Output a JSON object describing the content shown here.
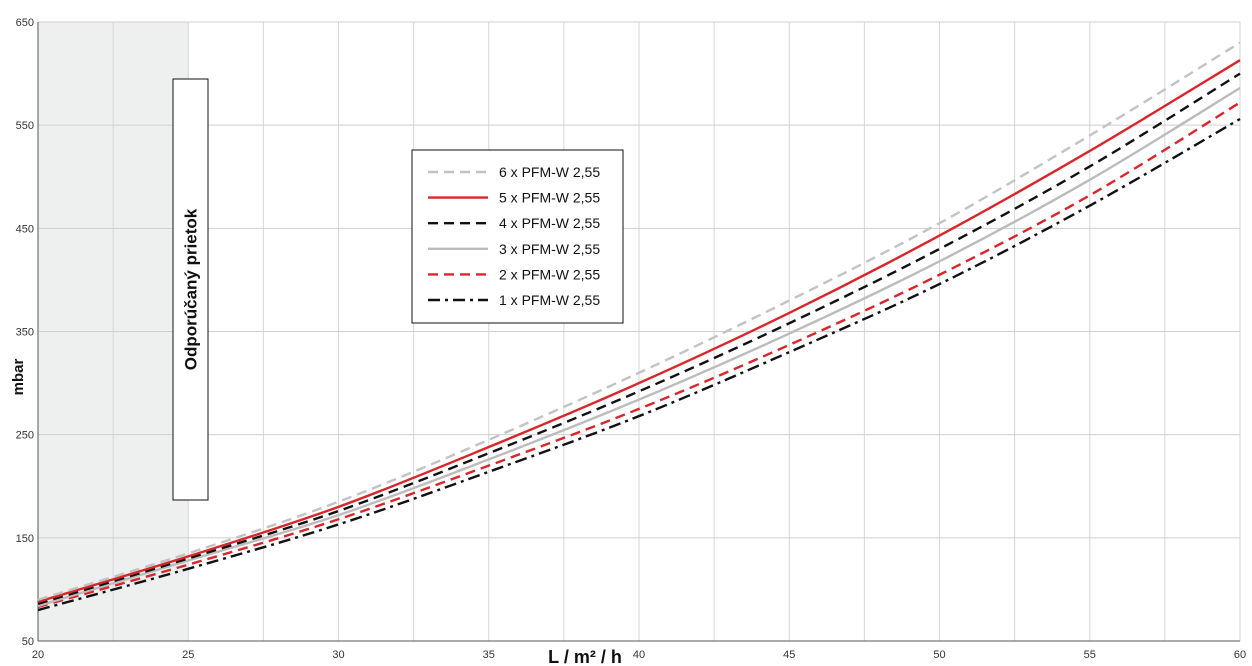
{
  "chart_data": {
    "type": "line",
    "title": "",
    "xlabel": "L / m² / h",
    "ylabel": "mbar",
    "xlim": [
      20,
      60
    ],
    "ylim": [
      50,
      650
    ],
    "x_ticks": [
      20,
      25,
      30,
      35,
      40,
      45,
      50,
      55,
      60
    ],
    "y_ticks": [
      50,
      150,
      250,
      350,
      450,
      550,
      650
    ],
    "x_grid_step": 2.5,
    "grid": true,
    "legend_position": "center-left",
    "recommended_band": {
      "label": "Odporúčaný prietok",
      "x_from": 20,
      "x_to": 25,
      "color": "#eef0ef"
    },
    "x": [
      20,
      25,
      30,
      35,
      40,
      45,
      50,
      55,
      60
    ],
    "series": [
      {
        "name": "6 x PFM-W 2,55",
        "color": "#c3c3c3",
        "style": "dashed",
        "values": [
          90,
          135,
          185,
          245,
          310,
          380,
          455,
          540,
          630
        ]
      },
      {
        "name": "5 x PFM-W 2,55",
        "color": "#d9262b",
        "style": "solid",
        "values": [
          88,
          132,
          180,
          238,
          300,
          368,
          443,
          525,
          613
        ]
      },
      {
        "name": "4 x PFM-W 2,55",
        "color": "#111111",
        "style": "dashed",
        "values": [
          86,
          130,
          176,
          232,
          292,
          358,
          430,
          510,
          600
        ]
      },
      {
        "name": "3 x PFM-W 2,55",
        "color": "#bcbcbc",
        "style": "solid",
        "values": [
          84,
          128,
          172,
          226,
          284,
          348,
          418,
          497,
          586
        ]
      },
      {
        "name": "2 x PFM-W 2,55",
        "color": "#d9262b",
        "style": "dashed",
        "values": [
          83,
          124,
          168,
          220,
          275,
          337,
          405,
          482,
          572
        ]
      },
      {
        "name": "1 x PFM-W 2,55",
        "color": "#111111",
        "style": "dashdot",
        "values": [
          80,
          120,
          163,
          214,
          268,
          330,
          396,
          472,
          556
        ]
      }
    ]
  }
}
